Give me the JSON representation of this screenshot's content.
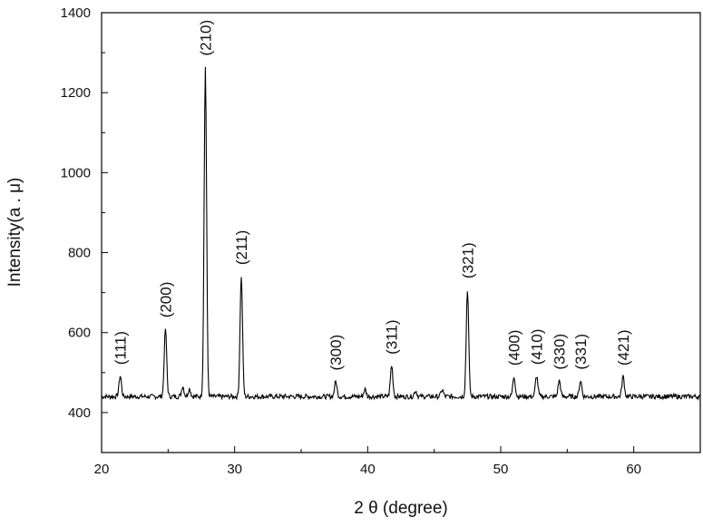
{
  "chart_data": {
    "type": "line",
    "title": "",
    "xlabel": "2 θ (degree)",
    "ylabel": "Intensity(a . μ)",
    "xlim": [
      20,
      65
    ],
    "ylim": [
      300,
      1400
    ],
    "x_ticks": [
      20,
      30,
      40,
      50,
      60
    ],
    "y_ticks": [
      400,
      600,
      800,
      1000,
      1200,
      1400
    ],
    "x_tick_labels": [
      "20",
      "30",
      "40",
      "50",
      "60"
    ],
    "y_tick_labels": [
      "400",
      "600",
      "800",
      "1000",
      "1200",
      "1400"
    ],
    "grid": false,
    "line_color": "#000000",
    "baseline": 440,
    "peaks": [
      {
        "x": 21.4,
        "y": 492,
        "label": "(111)"
      },
      {
        "x": 24.8,
        "y": 610,
        "label": "(200)"
      },
      {
        "x": 26.1,
        "y": 466,
        "label": ""
      },
      {
        "x": 26.6,
        "y": 460,
        "label": ""
      },
      {
        "x": 27.8,
        "y": 1265,
        "label": "(210)"
      },
      {
        "x": 30.5,
        "y": 742,
        "label": "(211)"
      },
      {
        "x": 37.6,
        "y": 478,
        "label": "(300)"
      },
      {
        "x": 39.8,
        "y": 458,
        "label": ""
      },
      {
        "x": 41.8,
        "y": 518,
        "label": "(311)"
      },
      {
        "x": 43.6,
        "y": 455,
        "label": ""
      },
      {
        "x": 45.6,
        "y": 457,
        "label": ""
      },
      {
        "x": 47.5,
        "y": 708,
        "label": "(321)"
      },
      {
        "x": 51.0,
        "y": 490,
        "label": "(400)"
      },
      {
        "x": 52.7,
        "y": 492,
        "label": "(410)"
      },
      {
        "x": 54.4,
        "y": 480,
        "label": "(330)"
      },
      {
        "x": 56.0,
        "y": 480,
        "label": "(331)"
      },
      {
        "x": 59.2,
        "y": 490,
        "label": "(421)"
      }
    ]
  }
}
